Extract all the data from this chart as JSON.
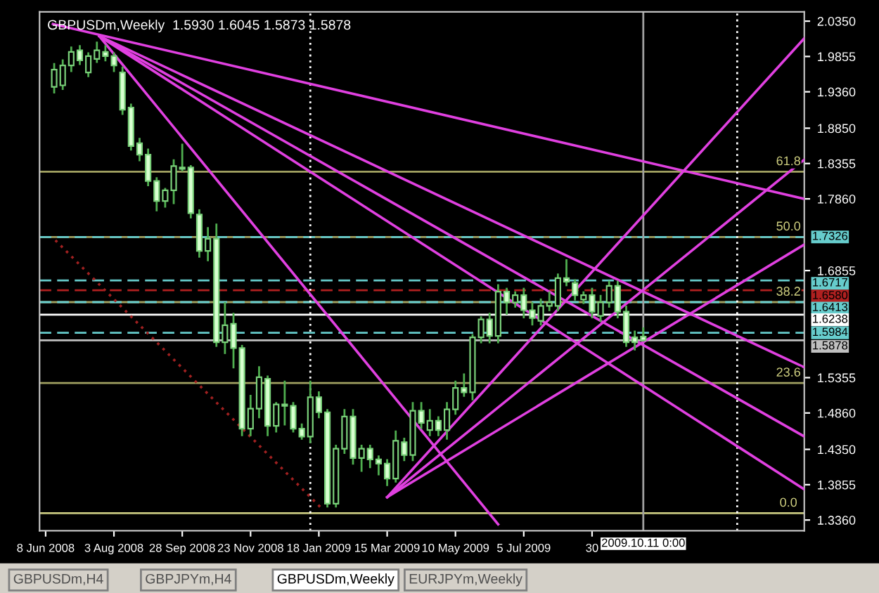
{
  "chart_data": {
    "type": "candlestick",
    "title": "GBPUSDm,Weekly  1.5930 1.6045 1.5873 1.5878",
    "x": [
      "2008-06-15",
      "2008-06-22",
      "2008-06-29",
      "2008-07-06",
      "2008-07-13",
      "2008-07-20",
      "2008-07-27",
      "2008-08-03",
      "2008-08-10",
      "2008-08-17",
      "2008-08-24",
      "2008-08-31",
      "2008-09-07",
      "2008-09-14",
      "2008-09-21",
      "2008-09-28",
      "2008-10-05",
      "2008-10-12",
      "2008-10-19",
      "2008-10-26",
      "2008-11-02",
      "2008-11-09",
      "2008-11-16",
      "2008-11-23",
      "2008-11-30",
      "2008-12-07",
      "2008-12-14",
      "2008-12-21",
      "2008-12-28",
      "2009-01-04",
      "2009-01-11",
      "2009-01-18",
      "2009-01-25",
      "2009-02-01",
      "2009-02-08",
      "2009-02-15",
      "2009-02-22",
      "2009-03-01",
      "2009-03-08",
      "2009-03-15",
      "2009-03-22",
      "2009-03-29",
      "2009-04-05",
      "2009-04-12",
      "2009-04-19",
      "2009-04-26",
      "2009-05-03",
      "2009-05-10",
      "2009-05-17",
      "2009-05-24",
      "2009-05-31",
      "2009-06-07",
      "2009-06-14",
      "2009-06-21",
      "2009-06-28",
      "2009-07-05",
      "2009-07-12",
      "2009-07-19",
      "2009-07-26",
      "2009-08-02",
      "2009-08-09",
      "2009-08-16",
      "2009-08-23",
      "2009-08-30",
      "2009-09-06",
      "2009-09-13",
      "2009-09-20",
      "2009-09-27",
      "2009-10-04",
      "2009-10-11"
    ],
    "ohlc": [
      [
        1.943,
        1.975,
        1.935,
        1.967
      ],
      [
        1.945,
        1.98,
        1.94,
        1.973
      ],
      [
        1.973,
        1.998,
        1.965,
        1.992
      ],
      [
        1.994,
        2.0,
        1.975,
        1.98
      ],
      [
        1.963,
        1.99,
        1.958,
        1.986
      ],
      [
        1.982,
        2.005,
        1.978,
        1.994
      ],
      [
        1.992,
        2.0,
        1.98,
        1.986
      ],
      [
        1.986,
        1.99,
        1.965,
        1.973
      ],
      [
        1.963,
        1.97,
        1.905,
        1.911
      ],
      [
        1.914,
        1.918,
        1.855,
        1.86
      ],
      [
        1.864,
        1.87,
        1.84,
        1.848
      ],
      [
        1.848,
        1.855,
        1.805,
        1.811
      ],
      [
        1.811,
        1.815,
        1.77,
        1.783
      ],
      [
        1.783,
        1.8,
        1.775,
        1.798
      ],
      [
        1.798,
        1.84,
        1.78,
        1.832
      ],
      [
        1.83,
        1.862,
        1.826,
        1.828
      ],
      [
        1.83,
        1.832,
        1.76,
        1.766
      ],
      [
        1.764,
        1.77,
        1.705,
        1.713
      ],
      [
        1.713,
        1.745,
        1.7,
        1.73
      ],
      [
        1.73,
        1.75,
        1.58,
        1.585
      ],
      [
        1.585,
        1.64,
        1.57,
        1.609
      ],
      [
        1.611,
        1.625,
        1.55,
        1.577
      ],
      [
        1.577,
        1.58,
        1.455,
        1.464
      ],
      [
        1.464,
        1.51,
        1.455,
        1.492
      ],
      [
        1.492,
        1.55,
        1.48,
        1.536
      ],
      [
        1.534,
        1.537,
        1.455,
        1.468
      ],
      [
        1.468,
        1.5,
        1.46,
        1.498
      ],
      [
        1.498,
        1.53,
        1.47,
        1.496
      ],
      [
        1.496,
        1.5,
        1.46,
        1.464
      ],
      [
        1.464,
        1.47,
        1.45,
        1.453
      ],
      [
        1.453,
        1.53,
        1.445,
        1.508
      ],
      [
        1.508,
        1.515,
        1.48,
        1.487
      ],
      [
        1.487,
        1.49,
        1.355,
        1.359
      ],
      [
        1.359,
        1.44,
        1.355,
        1.436
      ],
      [
        1.436,
        1.49,
        1.43,
        1.481
      ],
      [
        1.481,
        1.49,
        1.415,
        1.423
      ],
      [
        1.423,
        1.44,
        1.405,
        1.436
      ],
      [
        1.436,
        1.44,
        1.41,
        1.421
      ],
      [
        1.421,
        1.425,
        1.4,
        1.415
      ],
      [
        1.415,
        1.42,
        1.385,
        1.394
      ],
      [
        1.394,
        1.46,
        1.39,
        1.447
      ],
      [
        1.445,
        1.45,
        1.42,
        1.427
      ],
      [
        1.427,
        1.5,
        1.42,
        1.489
      ],
      [
        1.489,
        1.5,
        1.465,
        1.472
      ],
      [
        1.462,
        1.49,
        1.455,
        1.475
      ],
      [
        1.475,
        1.48,
        1.455,
        1.462
      ],
      [
        1.462,
        1.5,
        1.45,
        1.491
      ],
      [
        1.491,
        1.53,
        1.485,
        1.521
      ],
      [
        1.521,
        1.54,
        1.51,
        1.515
      ],
      [
        1.515,
        1.595,
        1.505,
        1.592
      ],
      [
        1.592,
        1.62,
        1.585,
        1.617
      ],
      [
        1.617,
        1.625,
        1.585,
        1.594
      ],
      [
        1.594,
        1.665,
        1.585,
        1.656
      ],
      [
        1.656,
        1.66,
        1.625,
        1.641
      ],
      [
        1.641,
        1.655,
        1.635,
        1.651
      ],
      [
        1.651,
        1.66,
        1.62,
        1.63
      ],
      [
        1.63,
        1.64,
        1.61,
        1.619
      ],
      [
        1.615,
        1.645,
        1.61,
        1.636
      ],
      [
        1.636,
        1.655,
        1.63,
        1.641
      ],
      [
        1.636,
        1.68,
        1.63,
        1.675
      ],
      [
        1.675,
        1.7,
        1.665,
        1.67
      ],
      [
        1.668,
        1.672,
        1.645,
        1.651
      ],
      [
        1.645,
        1.655,
        1.64,
        1.651
      ],
      [
        1.651,
        1.66,
        1.62,
        1.628
      ],
      [
        1.622,
        1.65,
        1.615,
        1.641
      ],
      [
        1.641,
        1.67,
        1.635,
        1.664
      ],
      [
        1.664,
        1.67,
        1.62,
        1.628
      ],
      [
        1.628,
        1.635,
        1.58,
        1.585
      ],
      [
        1.592,
        1.6,
        1.575,
        1.585
      ],
      [
        1.593,
        1.6045,
        1.5873,
        1.5878
      ]
    ],
    "series": [
      {
        "type": "line",
        "color": "#e040e0",
        "x": [
          "2008-06-14",
          "2010-02-20"
        ],
        "values": [
          2.031,
          1.786
        ]
      },
      {
        "type": "line",
        "color": "#e040e0",
        "x": [
          "2008-07-22",
          "2010-02-20"
        ],
        "values": [
          2.014,
          1.55
        ]
      },
      {
        "type": "line",
        "color": "#e040e0",
        "x": [
          "2008-07-22",
          "2010-02-20"
        ],
        "values": [
          2.014,
          1.453
        ]
      },
      {
        "type": "line",
        "color": "#e040e0",
        "x": [
          "2008-07-22",
          "2010-02-20"
        ],
        "values": [
          2.014,
          1.379
        ]
      },
      {
        "type": "line",
        "color": "#e040e0",
        "x": [
          "2008-07-22",
          "2009-06-14"
        ],
        "values": [
          2.014,
          1.33
        ]
      },
      {
        "type": "line",
        "color": "#e040e0",
        "x": [
          "2009-03-15",
          "2010-02-20"
        ],
        "values": [
          1.368,
          2.011
        ]
      },
      {
        "type": "line",
        "color": "#e040e0",
        "x": [
          "2009-03-15",
          "2010-02-20"
        ],
        "values": [
          1.368,
          1.841
        ]
      },
      {
        "type": "line",
        "color": "#e040e0",
        "x": [
          "2009-03-15",
          "2010-02-20"
        ],
        "values": [
          1.368,
          1.722
        ]
      },
      {
        "type": "line",
        "color": "#a02020",
        "line_style": "dotted",
        "x": [
          "2008-06-16",
          "2009-01-21"
        ],
        "values": [
          1.728,
          1.351
        ]
      }
    ],
    "ref_lines": [
      {
        "axis": "y",
        "value": 1.3456,
        "color": "#c8c880",
        "line_style": "solid"
      },
      {
        "axis": "y",
        "value": 1.528,
        "color": "#a0a060",
        "line_style": "solid"
      },
      {
        "axis": "y",
        "value": 1.6413,
        "color": "#a0a060",
        "line_style": "solid"
      },
      {
        "axis": "y",
        "value": 1.7326,
        "color": "#a0a060",
        "line_style": "solid"
      },
      {
        "axis": "y",
        "value": 1.824,
        "color": "#a0a060",
        "line_style": "solid"
      },
      {
        "axis": "y",
        "value": 1.7326,
        "label": "1.7326",
        "color": "#66cccc",
        "line_style": "dashed"
      },
      {
        "axis": "y",
        "value": 1.6717,
        "label": "1.6717",
        "color": "#66cccc",
        "line_style": "dashed"
      },
      {
        "axis": "y",
        "value": 1.658,
        "label": "1.6580",
        "color": "#b02020",
        "line_style": "dashed"
      },
      {
        "axis": "y",
        "value": 1.6413,
        "label": "1.6413",
        "color": "#66cccc",
        "line_style": "dashed"
      },
      {
        "axis": "y",
        "value": 1.6238,
        "label": "1.6238",
        "color": "#ffffff",
        "line_style": "solid"
      },
      {
        "axis": "y",
        "value": 1.5984,
        "label": "1.5984",
        "color": "#66cccc",
        "line_style": "dashed"
      },
      {
        "axis": "y",
        "value": 1.5878,
        "label": "1.5878",
        "color": "#c0c0c0",
        "line_style": "solid"
      },
      {
        "axis": "x",
        "value": "2009-01-11",
        "color": "#ffffff",
        "line_style": "dotted"
      },
      {
        "axis": "x",
        "value": "2009-12-27",
        "color": "#ffffff",
        "line_style": "dotted"
      },
      {
        "axis": "x",
        "value": "2009-10-11",
        "label": "2009.10.11 0:00",
        "color": "#a0a0a0",
        "line_style": "solid"
      }
    ],
    "annotations": [
      {
        "text": "0.0",
        "x": "2010-02-07",
        "y": 1.3456
      },
      {
        "text": "23.6",
        "x": "2010-02-07",
        "y": 1.528
      },
      {
        "text": "38.2",
        "x": "2010-02-07",
        "y": 1.6413
      },
      {
        "text": "50.0",
        "x": "2010-02-07",
        "y": 1.7326
      },
      {
        "text": "61.8",
        "x": "2010-02-07",
        "y": 1.824
      },
      "GBPUSDm,H4",
      "GBPJPYm,H4",
      "GBPUSDm,Weekly",
      "EURJPYm,Weekly"
    ],
    "xlim": [
      "2008-06-03",
      "2010-02-20"
    ],
    "ylim": [
      1.321,
      2.048
    ],
    "xticks": [
      {
        "value": "2008-06-08",
        "label": "8 Jun 2008"
      },
      {
        "value": "2008-08-03",
        "label": "3 Aug 2008"
      },
      {
        "value": "2008-09-28",
        "label": "28 Sep 2008"
      },
      {
        "value": "2008-11-23",
        "label": "23 Nov 2008"
      },
      {
        "value": "2009-01-18",
        "label": "18 Jan 2009"
      },
      {
        "value": "2009-03-15",
        "label": "15 Mar 2009"
      },
      {
        "value": "2009-05-10",
        "label": "10 May 2009"
      },
      {
        "value": "2009-07-05",
        "label": "5 Jul 2009"
      },
      {
        "value": "2009-08-30",
        "label": "30"
      }
    ],
    "yticks": [
      {
        "value": 2.035,
        "label": "2.0350"
      },
      {
        "value": 1.9855,
        "label": "1.9855"
      },
      {
        "value": 1.936,
        "label": "1.9360"
      },
      {
        "value": 1.885,
        "label": "1.8850"
      },
      {
        "value": 1.8355,
        "label": "1.8355"
      },
      {
        "value": 1.786,
        "label": "1.7860"
      },
      {
        "value": 1.6855,
        "label": "1.6855"
      },
      {
        "value": 1.5355,
        "label": "1.5355"
      },
      {
        "value": 1.486,
        "label": "1.4860"
      },
      {
        "value": 1.435,
        "label": "1.4350"
      },
      {
        "value": 1.3855,
        "label": "1.3855"
      },
      {
        "value": 1.336,
        "label": "1.3360"
      }
    ],
    "grid": false,
    "legend": false
  }
}
